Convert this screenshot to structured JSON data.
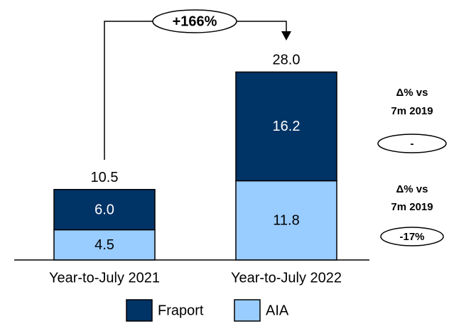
{
  "chart_data": {
    "type": "stacked_bar",
    "categories": [
      "Year-to-July 2021",
      "Year-to-July 2022"
    ],
    "series": [
      {
        "name": "AIA",
        "color": "#99ccff",
        "values": [
          4.5,
          11.8
        ]
      },
      {
        "name": "Fraport",
        "color": "#003366",
        "values": [
          6.0,
          16.2
        ],
        "value_labels": [
          "6.0",
          "16.2"
        ]
      }
    ],
    "totals": [
      10.5,
      28.0
    ],
    "total_labels": [
      "10.5",
      "28.0"
    ],
    "growth_label": "+166%",
    "annotations": [
      {
        "heading": [
          "Δ% vs",
          "7m 2019"
        ],
        "value": "-"
      },
      {
        "heading": [
          "Δ% vs",
          "7m 2019"
        ],
        "value": "-17%"
      }
    ]
  }
}
